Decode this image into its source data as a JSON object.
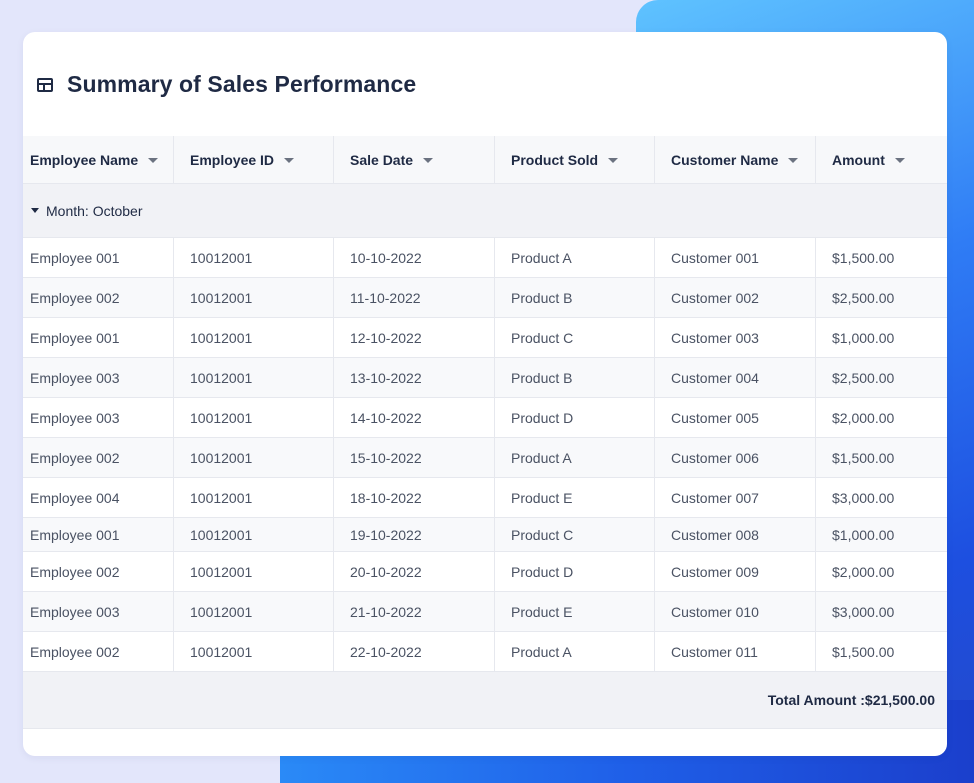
{
  "title": "Summary of Sales Performance",
  "columns": [
    "Employee Name",
    "Employee ID",
    "Sale Date",
    "Product Sold",
    "Customer Name",
    "Amount"
  ],
  "group": {
    "label": "Month: October"
  },
  "rows": [
    [
      "Employee 001",
      "10012001",
      "10-10-2022",
      "Product A",
      "Customer 001",
      "$1,500.00"
    ],
    [
      "Employee 002",
      "10012001",
      "11-10-2022",
      "Product B",
      "Customer 002",
      "$2,500.00"
    ],
    [
      "Employee 001",
      "10012001",
      "12-10-2022",
      "Product C",
      "Customer 003",
      "$1,000.00"
    ],
    [
      "Employee 003",
      "10012001",
      "13-10-2022",
      "Product B",
      "Customer 004",
      "$2,500.00"
    ],
    [
      "Employee 003",
      "10012001",
      "14-10-2022",
      "Product D",
      "Customer 005",
      "$2,000.00"
    ],
    [
      "Employee 002",
      "10012001",
      "15-10-2022",
      "Product A",
      "Customer 006",
      "$1,500.00"
    ],
    [
      "Employee 004",
      "10012001",
      "18-10-2022",
      "Product E",
      "Customer 007",
      "$3,000.00"
    ],
    [
      "Employee 001",
      "10012001",
      "19-10-2022",
      "Product C",
      "Customer 008",
      "$1,000.00"
    ],
    [
      "Employee 002",
      "10012001",
      "20-10-2022",
      "Product D",
      "Customer 009",
      "$2,000.00"
    ],
    [
      "Employee 003",
      "10012001",
      "21-10-2022",
      "Product E",
      "Customer 010",
      "$3,000.00"
    ],
    [
      "Employee 002",
      "10012001",
      "22-10-2022",
      "Product A",
      "Customer 011",
      "$1,500.00"
    ]
  ],
  "footer": {
    "total": "Total Amount :$21,500.00"
  },
  "icons": {
    "title": "table-icon",
    "sort": "caret-down-icon",
    "group": "caret-down-icon"
  },
  "colors": {
    "title": "#1f2a44",
    "accent": "#2f7cf5"
  }
}
